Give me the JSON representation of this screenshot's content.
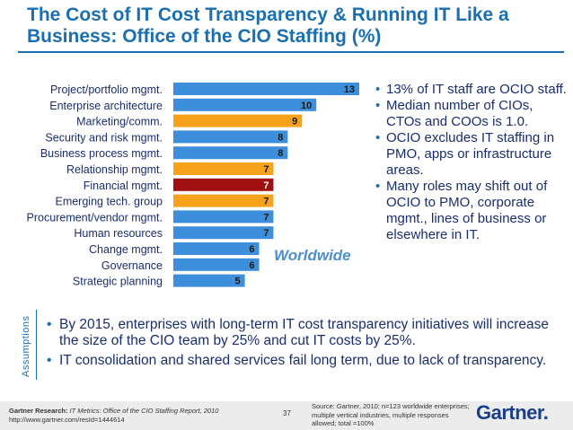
{
  "title": "The Cost of IT Cost Transparency & Running IT Like a Business: Office of the CIO Staffing (%)",
  "chart_data": {
    "type": "bar",
    "orientation": "horizontal",
    "categories": [
      "Project/portfolio mgmt.",
      "Enterprise architecture",
      "Marketing/comm.",
      "Security and risk mgmt.",
      "Business process mgmt.",
      "Relationship mgmt.",
      "Financial mgmt.",
      "Emerging tech. group",
      "Procurement/vendor mgmt.",
      "Human resources",
      "Change mgmt.",
      "Governance",
      "Strategic planning"
    ],
    "values": [
      13,
      10,
      9,
      8,
      8,
      7,
      7,
      7,
      7,
      7,
      6,
      6,
      5
    ],
    "bar_colors": [
      "#3d8fdc",
      "#3d8fdc",
      "#f7a21b",
      "#3d8fdc",
      "#3d8fdc",
      "#f7a21b",
      "#a11010",
      "#f7a21b",
      "#3d8fdc",
      "#3d8fdc",
      "#3d8fdc",
      "#3d8fdc",
      "#3d8fdc"
    ],
    "xlim": [
      0,
      13
    ],
    "annotation": "Worldwide"
  },
  "bullets": [
    "13% of IT staff are OCIO staff.",
    "Median number of CIOs, CTOs and COOs is 1.0.",
    "OCIO excludes IT staffing in PMO, apps or infrastructure areas.",
    "Many roles may shift out of OCIO to PMO, corporate mgmt., lines of business or elsewhere in IT."
  ],
  "assumptions_label": "Assumptions",
  "assumptions": [
    "By 2015, enterprises with long-term IT cost transparency initiatives will increase the size of the CIO team by 25% and cut IT costs by 25%.",
    "IT consolidation and shared services fail long term, due to lack of transparency."
  ],
  "footer": {
    "research_bold": "Gartner Research:",
    "research_text": "IT Metrics: Office of the CIO Staffing Report, 2010",
    "url": "http://www.gartner.com/resId=1444614",
    "page": "37",
    "source": "Source: Gartner, 2010; n=123 worldwide enterprises; multiple vertical industries, multiple responses allowed; total =100%",
    "logo": "Gartner"
  }
}
